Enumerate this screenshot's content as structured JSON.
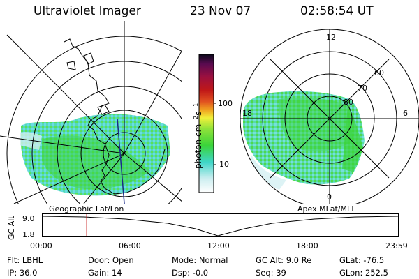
{
  "header": {
    "instrument": "Ultraviolet Imager",
    "date": "23 Nov 07",
    "time": "02:58:54 UT"
  },
  "colorbar": {
    "unit_label": "photon cm",
    "unit_exp1": "−2",
    "unit_mid": "s",
    "unit_exp2": "−1",
    "ticks": [
      "100",
      "10"
    ]
  },
  "left_panel": {
    "caption": "Geographic Lat/Lon"
  },
  "right_panel": {
    "caption": "Apex MLat/MLT",
    "mlt_labels": [
      "12",
      "18",
      "6",
      "0"
    ],
    "mlat_labels": [
      "60",
      "70",
      "80"
    ]
  },
  "altitude_plot": {
    "ylabel": "GC Alt",
    "yticks": [
      "9.0",
      "1.8"
    ],
    "xticks": [
      "00:00",
      "06:00",
      "12:00",
      "18:00",
      "23:59"
    ],
    "current_time_fraction": 0.124
  },
  "info": {
    "filter": "Flt: LBHL",
    "ip": "IP: 36.0",
    "door": "Door: Open",
    "gain": "Gain: 14",
    "mode": "Mode: Normal",
    "dsp": "Dsp:    -0.0",
    "gc_alt": "GC Alt: 9.0 Re",
    "seq": "Seq: 39",
    "glat": "GLat: -76.5",
    "glon": "GLon: 252.5"
  },
  "colors": {
    "marker": "#c00000",
    "aurora_green": "#3ad43a",
    "aurora_cyan": "#3fd6c8"
  }
}
